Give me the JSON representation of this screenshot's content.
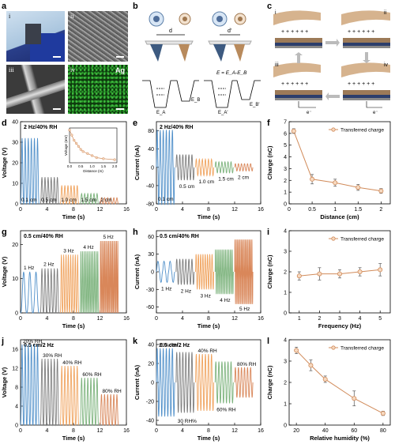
{
  "panel_letters": [
    "a",
    "b",
    "c",
    "d",
    "e",
    "f",
    "g",
    "h",
    "i",
    "j",
    "k",
    "l"
  ],
  "panel_a": {
    "subpanels": [
      "i",
      "ii",
      "iii",
      "iv"
    ],
    "element_label": "Ag"
  },
  "panel_b": {
    "d_label": "d",
    "d2_label": "d'",
    "equation": "E = E_A-E_B",
    "ea": "E_A",
    "eb": "E_B",
    "ea2": "E_A'",
    "eb2": "E_B'"
  },
  "panel_c": {
    "steps": [
      "i",
      "ii",
      "iii",
      "iv"
    ],
    "electron": "e⁻"
  },
  "chart_data": [
    {
      "id": "d",
      "type": "line",
      "title": "2 Hz/40% RH",
      "xlabel": "Time (s)",
      "ylabel": "Voltage (V)",
      "xlim": [
        0,
        16
      ],
      "ylim": [
        0,
        40
      ],
      "xticks": [
        0,
        4,
        8,
        12,
        16
      ],
      "yticks": [
        0,
        10,
        20,
        30,
        40
      ],
      "segments": [
        {
          "name": "0.1 cm",
          "color": "#4f8fc9",
          "x": [
            0,
            2.8
          ],
          "amp": 32
        },
        {
          "name": "0.5 cm",
          "color": "#7d7d7d",
          "x": [
            3,
            5.8
          ],
          "amp": 13
        },
        {
          "name": "1.0 cm",
          "color": "#f0a35e",
          "x": [
            6,
            8.8
          ],
          "amp": 9
        },
        {
          "name": "1.5 cm",
          "color": "#7bb27b",
          "x": [
            9,
            11.8
          ],
          "amp": 5
        },
        {
          "name": "2 cm",
          "color": "#d9875a",
          "x": [
            12,
            14.8
          ],
          "amp": 3
        }
      ],
      "inset": {
        "xlabel": "Distance (m)",
        "ylabel": "Voltage (mV)",
        "x": [
          0,
          0.1,
          0.2,
          0.3,
          0.4,
          0.5,
          0.6,
          0.8,
          1.0,
          1.2,
          1.5,
          2.0
        ],
        "y": [
          32,
          27,
          22,
          19,
          16,
          13,
          11,
          9,
          7,
          5,
          4,
          3
        ],
        "xticks": [
          0.0,
          0.5,
          1.0,
          1.5,
          2.0
        ]
      }
    },
    {
      "id": "e",
      "type": "line",
      "title": "2 Hz/40% RH",
      "xlabel": "Time (s)",
      "ylabel": "Current (nA)",
      "xlim": [
        0,
        16
      ],
      "ylim": [
        -80,
        100
      ],
      "xticks": [
        0,
        4,
        8,
        12,
        16
      ],
      "yticks": [
        -80,
        -40,
        0,
        40,
        80
      ],
      "segments": [
        {
          "name": "0.1 cm",
          "color": "#4f8fc9",
          "x": [
            0,
            2.8
          ],
          "amp": 82
        },
        {
          "name": "0.5 cm",
          "color": "#7d7d7d",
          "x": [
            3,
            5.8
          ],
          "amp": 28
        },
        {
          "name": "1.0 cm",
          "color": "#f0a35e",
          "x": [
            6,
            8.8
          ],
          "amp": 18
        },
        {
          "name": "1.5 cm",
          "color": "#7bb27b",
          "x": [
            9,
            11.8
          ],
          "amp": 12
        },
        {
          "name": "2 cm",
          "color": "#d9875a",
          "x": [
            12,
            14.8
          ],
          "amp": 8
        }
      ]
    },
    {
      "id": "f",
      "type": "line",
      "xlabel": "Distance (cm)",
      "ylabel": "Charge (nC)",
      "xlim": [
        0,
        2.2
      ],
      "ylim": [
        0,
        7
      ],
      "xticks": [
        0.0,
        0.5,
        1.0,
        1.5,
        2.0
      ],
      "yticks": [
        0,
        1,
        2,
        3,
        4,
        5,
        6,
        7
      ],
      "legend": "Transferred charge",
      "x": [
        0.1,
        0.5,
        1.0,
        1.5,
        2.0
      ],
      "y": [
        6.2,
        2.1,
        1.8,
        1.4,
        1.1
      ],
      "err": [
        0.2,
        0.4,
        0.3,
        0.25,
        0.2
      ]
    },
    {
      "id": "g",
      "type": "line",
      "title": "0.5 cm/40% RH",
      "xlabel": "Time (s)",
      "ylabel": "Voltage (V)",
      "xlim": [
        0,
        16
      ],
      "ylim": [
        0,
        24
      ],
      "xticks": [
        0,
        4,
        8,
        12,
        16
      ],
      "yticks": [
        0,
        10,
        20
      ],
      "segments": [
        {
          "name": "1 Hz",
          "color": "#4f8fc9",
          "x": [
            0,
            2.8
          ],
          "amp": 12,
          "freq": 1
        },
        {
          "name": "2 Hz",
          "color": "#7d7d7d",
          "x": [
            3,
            5.8
          ],
          "amp": 13,
          "freq": 2
        },
        {
          "name": "3 Hz",
          "color": "#f0a35e",
          "x": [
            6,
            8.8
          ],
          "amp": 17,
          "freq": 3
        },
        {
          "name": "4 Hz",
          "color": "#7bb27b",
          "x": [
            9,
            11.8
          ],
          "amp": 18,
          "freq": 4
        },
        {
          "name": "5 Hz",
          "color": "#d9875a",
          "x": [
            12,
            14.8
          ],
          "amp": 21,
          "freq": 5
        }
      ]
    },
    {
      "id": "h",
      "type": "line",
      "title": "0.5 cm/40% RH",
      "xlabel": "Time (s)",
      "ylabel": "Current (nA)",
      "xlim": [
        0,
        16
      ],
      "ylim": [
        -70,
        70
      ],
      "xticks": [
        0,
        4,
        8,
        12,
        16
      ],
      "yticks": [
        -60,
        -30,
        0,
        30,
        60
      ],
      "segments": [
        {
          "name": "1 Hz",
          "color": "#4f8fc9",
          "x": [
            0,
            2.8
          ],
          "amp": 18,
          "freq": 1
        },
        {
          "name": "2 Hz",
          "color": "#7d7d7d",
          "x": [
            3,
            5.8
          ],
          "amp": 22,
          "freq": 2
        },
        {
          "name": "3 Hz",
          "color": "#f0a35e",
          "x": [
            6,
            8.8
          ],
          "amp": 30,
          "freq": 3
        },
        {
          "name": "4 Hz",
          "color": "#7bb27b",
          "x": [
            9,
            11.8
          ],
          "amp": 38,
          "freq": 4
        },
        {
          "name": "5 Hz",
          "color": "#d9875a",
          "x": [
            12,
            14.8
          ],
          "amp": 55,
          "freq": 5
        }
      ]
    },
    {
      "id": "i",
      "type": "line",
      "xlabel": "Frequency (Hz)",
      "ylabel": "Charge (nC)",
      "xlim": [
        0.5,
        5.5
      ],
      "ylim": [
        0,
        4
      ],
      "xticks": [
        1,
        2,
        3,
        4,
        5
      ],
      "yticks": [
        0,
        1,
        2,
        3,
        4
      ],
      "legend": "Transferred charge",
      "x": [
        1,
        2,
        3,
        4,
        5
      ],
      "y": [
        1.8,
        1.9,
        1.9,
        2.0,
        2.1
      ],
      "err": [
        0.2,
        0.3,
        0.2,
        0.2,
        0.3
      ]
    },
    {
      "id": "j",
      "type": "line",
      "title": "0.5 cm/2 Hz",
      "xlabel": "Time (s)",
      "ylabel": "Voltage (V)",
      "xlim": [
        0,
        16
      ],
      "ylim": [
        0,
        18
      ],
      "xticks": [
        0,
        4,
        8,
        12,
        16
      ],
      "yticks": [
        0,
        4,
        8,
        12,
        16
      ],
      "segments": [
        {
          "name": "20% RH",
          "color": "#4f8fc9",
          "x": [
            0,
            2.8
          ],
          "amp": 17
        },
        {
          "name": "30% RH",
          "color": "#7d7d7d",
          "x": [
            3,
            5.8
          ],
          "amp": 14
        },
        {
          "name": "40% RH",
          "color": "#f0a35e",
          "x": [
            6,
            8.8
          ],
          "amp": 12.5
        },
        {
          "name": "60% RH",
          "color": "#7bb27b",
          "x": [
            9,
            11.8
          ],
          "amp": 10
        },
        {
          "name": "80% RH",
          "color": "#d9875a",
          "x": [
            12,
            14.8
          ],
          "amp": 6.5
        }
      ]
    },
    {
      "id": "k",
      "type": "line",
      "title": "0.5 cm/2 Hz",
      "xlabel": "Time (s)",
      "ylabel": "Current (nA)",
      "xlim": [
        0,
        16
      ],
      "ylim": [
        -45,
        45
      ],
      "xticks": [
        0,
        4,
        8,
        12,
        16
      ],
      "yticks": [
        -40,
        -20,
        0,
        20,
        40
      ],
      "segments": [
        {
          "name": "20% RH",
          "color": "#4f8fc9",
          "x": [
            0,
            2.8
          ],
          "amp": 36
        },
        {
          "name": "30 RH%",
          "color": "#7d7d7d",
          "x": [
            3,
            5.8
          ],
          "amp": 32
        },
        {
          "name": "40% RH",
          "color": "#f0a35e",
          "x": [
            6,
            8.8
          ],
          "amp": 30
        },
        {
          "name": "60% RH",
          "color": "#7bb27b",
          "x": [
            9,
            11.8
          ],
          "amp": 22
        },
        {
          "name": "80% RH",
          "color": "#d9875a",
          "x": [
            12,
            14.8
          ],
          "amp": 16
        }
      ]
    },
    {
      "id": "l",
      "type": "line",
      "xlabel": "Relative humidity (%)",
      "ylabel": "Charge (nC)",
      "xlim": [
        15,
        85
      ],
      "ylim": [
        0,
        4
      ],
      "xticks": [
        20,
        40,
        60,
        80
      ],
      "yticks": [
        0,
        1,
        2,
        3,
        4
      ],
      "legend": "Transferred charge",
      "x": [
        20,
        30,
        40,
        60,
        80
      ],
      "y": [
        3.5,
        2.8,
        2.15,
        1.25,
        0.55
      ],
      "err": [
        0.15,
        0.25,
        0.15,
        0.35,
        0.1
      ]
    }
  ]
}
